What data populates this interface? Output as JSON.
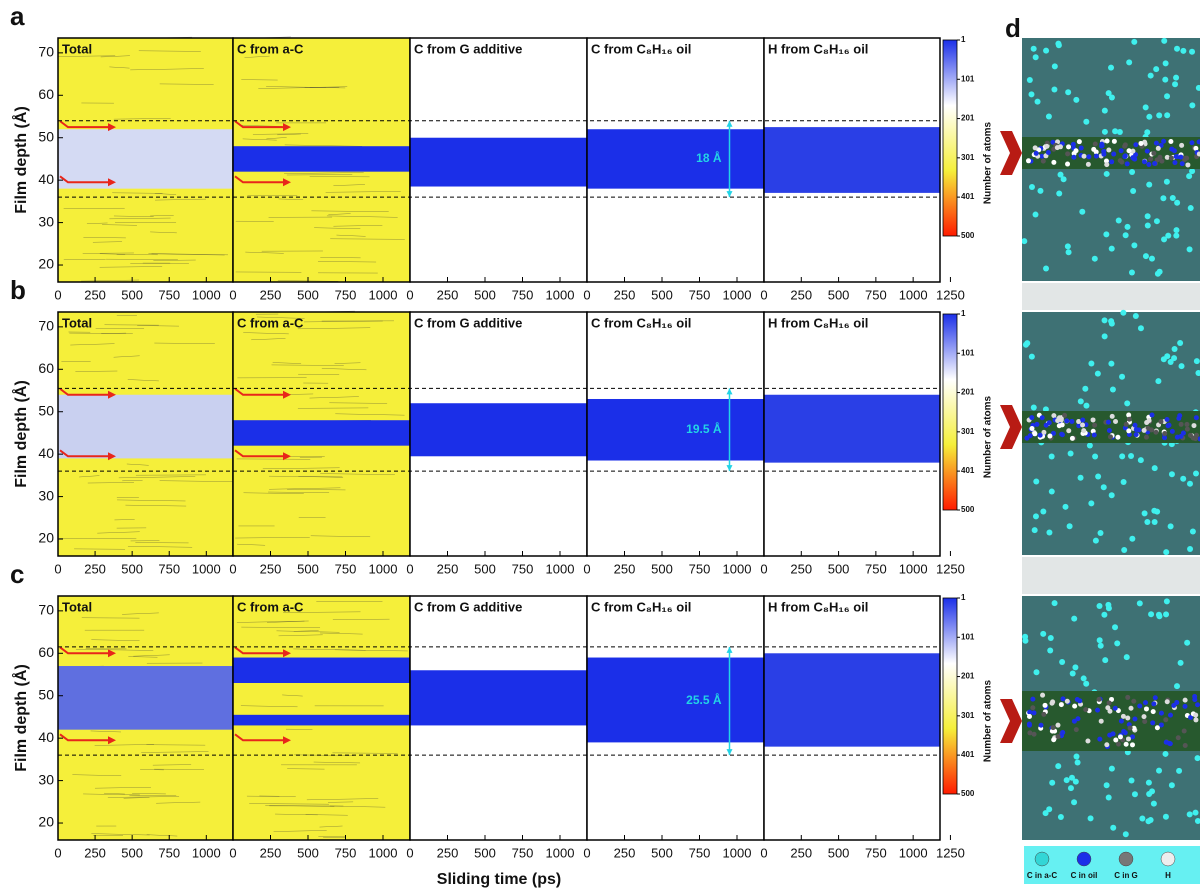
{
  "panel_labels": [
    "a",
    "b",
    "c",
    "d"
  ],
  "y_axis_label": "Film depth (Å)",
  "x_axis_label": "Sliding time (ps)",
  "colorbar": {
    "label": "Number of atoms",
    "lim": [
      1,
      500
    ],
    "ticks": [
      1,
      101,
      201,
      301,
      401,
      500
    ],
    "colors": [
      "#1b2fe8",
      "#ffffff",
      "#f5ef3a",
      "#ff1a00"
    ]
  },
  "legend": [
    {
      "name": "C in a-C",
      "color": "#33d6d6"
    },
    {
      "name": "C in oil",
      "color": "#1b2fe8"
    },
    {
      "name": "C in G",
      "color": "#777777"
    },
    {
      "name": "H",
      "color": "#eeeeee"
    }
  ],
  "chart_data": [
    {
      "type": "contour",
      "ylim": [
        16,
        73.5
      ],
      "yticks": [
        20,
        30,
        40,
        50,
        60,
        70
      ],
      "xlim": [
        0,
        1180
      ],
      "xticks": [
        0,
        250,
        500,
        750,
        1000
      ],
      "dashed": [
        54,
        36
      ],
      "gap_label": "18 Å",
      "panels": [
        {
          "title": "Total",
          "background": "#f5ef3a",
          "band_color": "#d4daf3",
          "bands": [
            [
              38,
              52
            ]
          ]
        },
        {
          "title": "C from a-C",
          "background": "#f5ef3a",
          "band_color": "#1b2fe8",
          "bands": [
            [
              42,
              48
            ]
          ]
        },
        {
          "title": "C from G additive",
          "background": "#ffffff",
          "band_color": "#1b2fe8",
          "bands": [
            [
              38.5,
              50
            ]
          ]
        },
        {
          "title": "C from C₈H₁₆ oil",
          "background": "#ffffff",
          "band_color": "#1b2fe8",
          "bands": [
            [
              38,
              52
            ]
          ]
        },
        {
          "title": "H from C₈H₁₆ oil",
          "background": "#ffffff",
          "band_color": "#2a3fe6",
          "bands": [
            [
              37,
              52.5
            ]
          ],
          "xticks": [
            0,
            250,
            500,
            750,
            1000,
            1250
          ]
        }
      ]
    },
    {
      "type": "contour",
      "ylim": [
        16,
        73.5
      ],
      "yticks": [
        20,
        30,
        40,
        50,
        60,
        70
      ],
      "xlim": [
        0,
        1180
      ],
      "xticks": [
        0,
        250,
        500,
        750,
        1000
      ],
      "dashed": [
        55.5,
        36
      ],
      "gap_label": "19.5 Å",
      "panels": [
        {
          "title": "Total",
          "background": "#f5ef3a",
          "band_color": "#c9d0f0",
          "bands": [
            [
              39,
              54
            ]
          ]
        },
        {
          "title": "C from a-C",
          "background": "#f5ef3a",
          "band_color": "#1b2fe8",
          "bands": [
            [
              42,
              48
            ]
          ]
        },
        {
          "title": "C from G additive",
          "background": "#ffffff",
          "band_color": "#1b2fe8",
          "bands": [
            [
              39.5,
              52
            ]
          ]
        },
        {
          "title": "C from C₈H₁₆ oil",
          "background": "#ffffff",
          "band_color": "#1b2fe8",
          "bands": [
            [
              38.5,
              53
            ]
          ]
        },
        {
          "title": "H from C₈H₁₆ oil",
          "background": "#ffffff",
          "band_color": "#2a3fe6",
          "bands": [
            [
              38,
              54
            ]
          ],
          "xticks": [
            0,
            250,
            500,
            750,
            1000,
            1250
          ]
        }
      ]
    },
    {
      "type": "contour",
      "ylim": [
        16,
        73.5
      ],
      "yticks": [
        20,
        30,
        40,
        50,
        60,
        70
      ],
      "xlim": [
        0,
        1180
      ],
      "xticks": [
        0,
        250,
        500,
        750,
        1000
      ],
      "dashed": [
        61.5,
        36
      ],
      "gap_label": "25.5 Å",
      "panels": [
        {
          "title": "Total",
          "background": "#f5ef3a",
          "band_color": "#5f6fe0",
          "bands": [
            [
              42,
              57
            ]
          ]
        },
        {
          "title": "C from a-C",
          "background": "#f5ef3a",
          "band_color": "#1b2fe8",
          "bands": [
            [
              43,
              45.5
            ],
            [
              53,
              59
            ]
          ]
        },
        {
          "title": "C from G additive",
          "background": "#ffffff",
          "band_color": "#1b2fe8",
          "bands": [
            [
              43,
              56
            ]
          ]
        },
        {
          "title": "C from C₈H₁₆ oil",
          "background": "#ffffff",
          "band_color": "#1b2fe8",
          "bands": [
            [
              39,
              59
            ]
          ]
        },
        {
          "title": "H from C₈H₁₆ oil",
          "background": "#ffffff",
          "band_color": "#2a3fe6",
          "bands": [
            [
              38,
              60
            ]
          ],
          "xticks": [
            0,
            250,
            500,
            750,
            1000,
            1250
          ]
        }
      ]
    }
  ]
}
